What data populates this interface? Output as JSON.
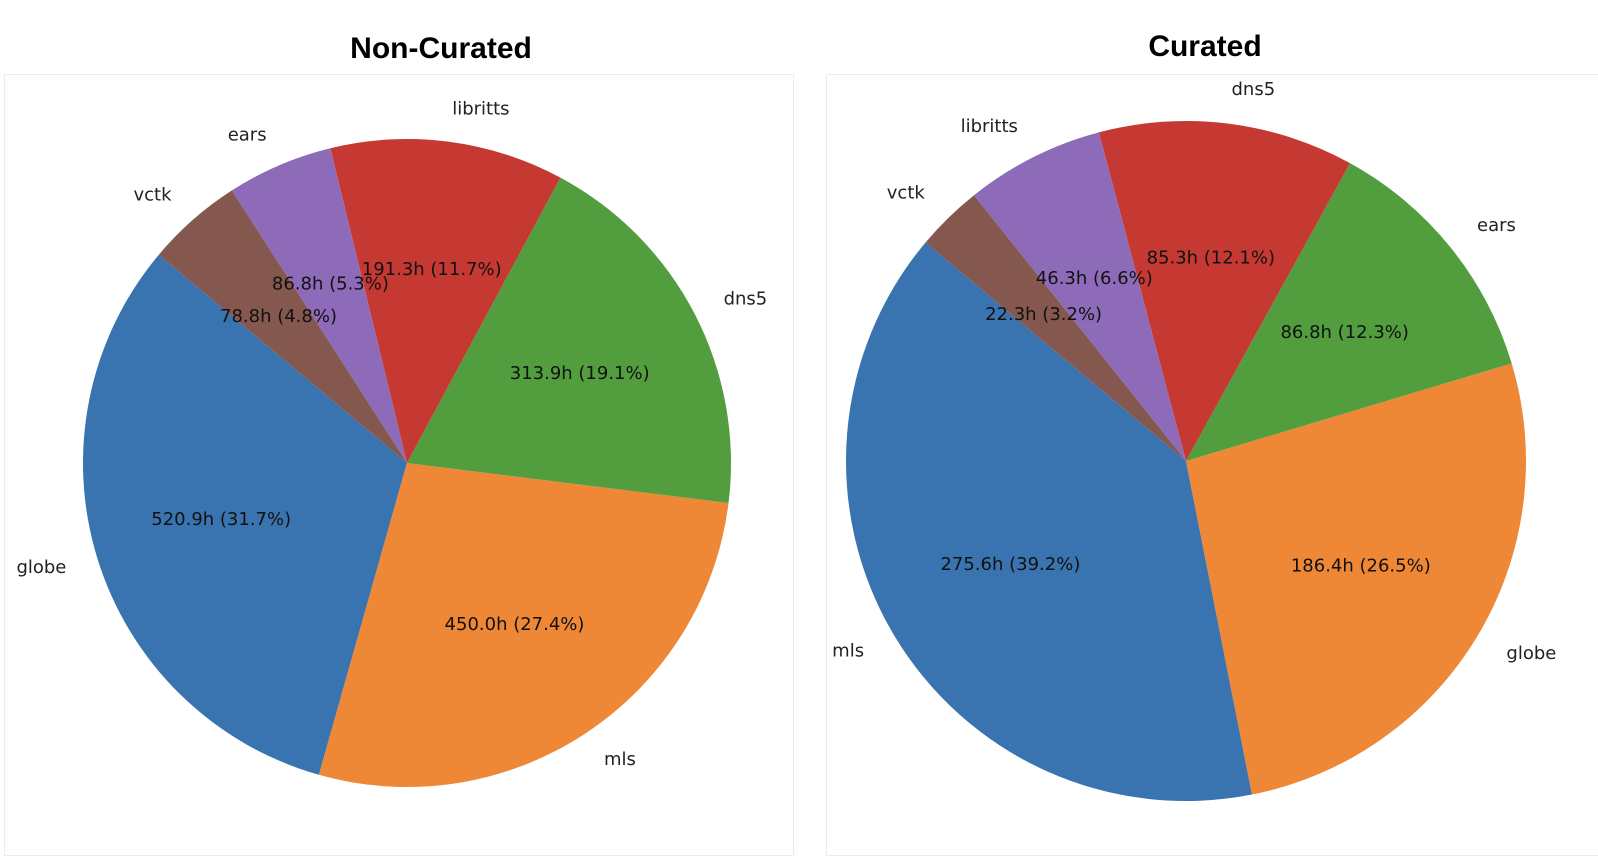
{
  "chart_data": [
    {
      "type": "pie",
      "title": "Non-Curated",
      "slices": [
        {
          "label": "globe",
          "value": 520.9,
          "value_label": "520.9h (31.7%)",
          "color": "#3a74b0"
        },
        {
          "label": "mls",
          "value": 450.0,
          "value_label": "450.0h (27.4%)",
          "color": "#ee8736"
        },
        {
          "label": "dns5",
          "value": 313.9,
          "value_label": "313.9h (19.1%)",
          "color": "#529d3e"
        },
        {
          "label": "libritts",
          "value": 191.3,
          "value_label": "191.3h (11.7%)",
          "color": "#c53932"
        },
        {
          "label": "ears",
          "value": 86.8,
          "value_label": "86.8h (5.3%)",
          "color": "#8d6bb8"
        },
        {
          "label": "vctk",
          "value": 78.8,
          "value_label": "78.8h (4.8%)",
          "color": "#84584e"
        }
      ]
    },
    {
      "type": "pie",
      "title": "Curated",
      "slices": [
        {
          "label": "mls",
          "value": 275.6,
          "value_label": "275.6h (39.2%)",
          "color": "#3a74b0"
        },
        {
          "label": "globe",
          "value": 186.4,
          "value_label": "186.4h (26.5%)",
          "color": "#ee8736"
        },
        {
          "label": "ears",
          "value": 86.8,
          "value_label": "86.8h (12.3%)",
          "color": "#529d3e"
        },
        {
          "label": "dns5",
          "value": 85.3,
          "value_label": "85.3h (12.1%)",
          "color": "#c53932"
        },
        {
          "label": "libritts",
          "value": 46.3,
          "value_label": "46.3h (6.6%)",
          "color": "#8d6bb8"
        },
        {
          "label": "vctk",
          "value": 22.3,
          "value_label": "22.3h (3.2%)",
          "color": "#84584e"
        }
      ]
    }
  ]
}
